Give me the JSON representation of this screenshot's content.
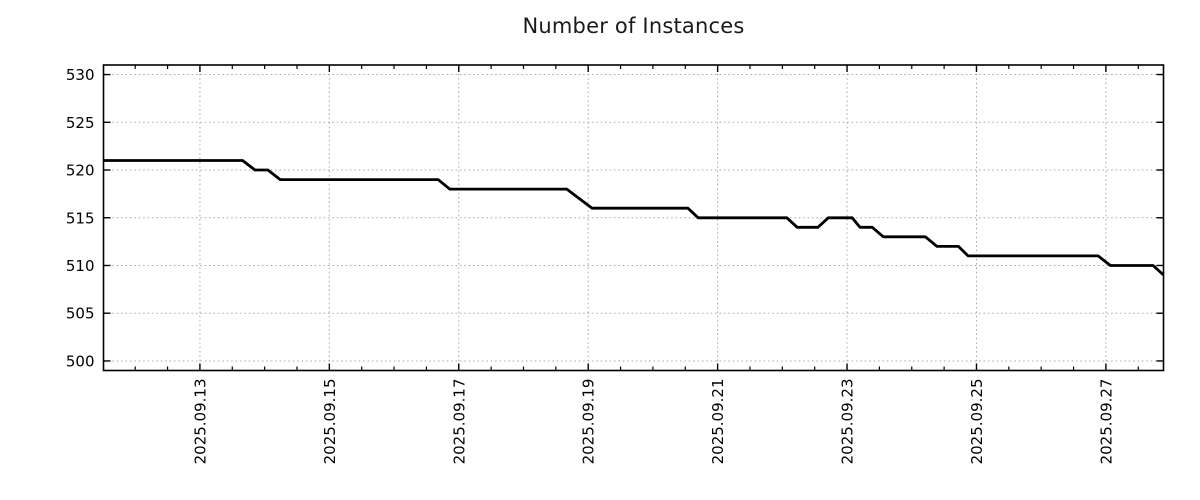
{
  "chart_data": {
    "type": "line",
    "title": "Number of Instances",
    "x_axis": {
      "tick_positions": [
        13,
        15,
        17,
        19,
        21,
        23,
        25,
        27
      ],
      "tick_labels": [
        "2025.09.13",
        "2025.09.15",
        "2025.09.17",
        "2025.09.19",
        "2025.09.21",
        "2025.09.23",
        "2025.09.25",
        "2025.09.27"
      ],
      "minor_tick_step": 0.5,
      "range": [
        11.51,
        27.89
      ]
    },
    "y_axis": {
      "tick_positions": [
        500,
        505,
        510,
        515,
        520,
        525,
        530
      ],
      "tick_labels": [
        "500",
        "505",
        "510",
        "515",
        "520",
        "525",
        "530"
      ],
      "range": [
        499,
        531
      ]
    },
    "series": [
      {
        "name": "instances",
        "color": "#000000",
        "points": [
          [
            11.51,
            521
          ],
          [
            13.66,
            521
          ],
          [
            13.85,
            520
          ],
          [
            14.05,
            520
          ],
          [
            14.24,
            519
          ],
          [
            16.68,
            519
          ],
          [
            16.86,
            518
          ],
          [
            18.67,
            518
          ],
          [
            19.06,
            516
          ],
          [
            20.54,
            516
          ],
          [
            20.7,
            515
          ],
          [
            22.07,
            515
          ],
          [
            22.23,
            514
          ],
          [
            22.55,
            514
          ],
          [
            22.71,
            515
          ],
          [
            23.08,
            515
          ],
          [
            23.2,
            514
          ],
          [
            23.39,
            514
          ],
          [
            23.56,
            513
          ],
          [
            24.21,
            513
          ],
          [
            24.39,
            512
          ],
          [
            24.72,
            512
          ],
          [
            24.87,
            511
          ],
          [
            26.88,
            511
          ],
          [
            27.07,
            510
          ],
          [
            27.73,
            510
          ],
          [
            27.89,
            509
          ]
        ]
      }
    ],
    "grid": {
      "show": true,
      "style": "dotted",
      "color": "#a9a9a9"
    },
    "legend": {
      "show": false
    },
    "colors": {
      "background": "#ffffff",
      "line": "#000000",
      "border": "#000000",
      "tick_text": "#000000",
      "title_text": "#1a1a1a"
    }
  }
}
